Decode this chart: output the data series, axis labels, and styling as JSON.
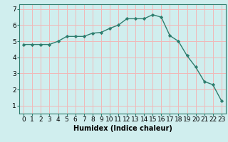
{
  "x": [
    0,
    1,
    2,
    3,
    4,
    5,
    6,
    7,
    8,
    9,
    10,
    11,
    12,
    13,
    14,
    15,
    16,
    17,
    18,
    19,
    20,
    21,
    22,
    23
  ],
  "y": [
    4.8,
    4.8,
    4.8,
    4.8,
    5.0,
    5.3,
    5.3,
    5.3,
    5.5,
    5.55,
    5.8,
    6.0,
    6.4,
    6.4,
    6.4,
    6.65,
    6.5,
    5.35,
    5.0,
    4.1,
    3.4,
    2.5,
    2.3,
    1.3
  ],
  "line_color": "#2e7d6e",
  "marker": "D",
  "marker_size": 2.2,
  "bg_color": "#d0eeee",
  "grid_color": "#f0b8b8",
  "xlabel": "Humidex (Indice chaleur)",
  "ylim": [
    0.5,
    7.3
  ],
  "xlim": [
    -0.5,
    23.5
  ],
  "yticks": [
    1,
    2,
    3,
    4,
    5,
    6,
    7
  ],
  "xticks": [
    0,
    1,
    2,
    3,
    4,
    5,
    6,
    7,
    8,
    9,
    10,
    11,
    12,
    13,
    14,
    15,
    16,
    17,
    18,
    19,
    20,
    21,
    22,
    23
  ],
  "xtick_labels": [
    "0",
    "1",
    "2",
    "3",
    "4",
    "5",
    "6",
    "7",
    "8",
    "9",
    "10",
    "11",
    "12",
    "13",
    "14",
    "15",
    "16",
    "17",
    "18",
    "19",
    "20",
    "21",
    "22",
    "23"
  ],
  "xlabel_fontsize": 7,
  "tick_fontsize": 6.5,
  "line_width": 1.0
}
